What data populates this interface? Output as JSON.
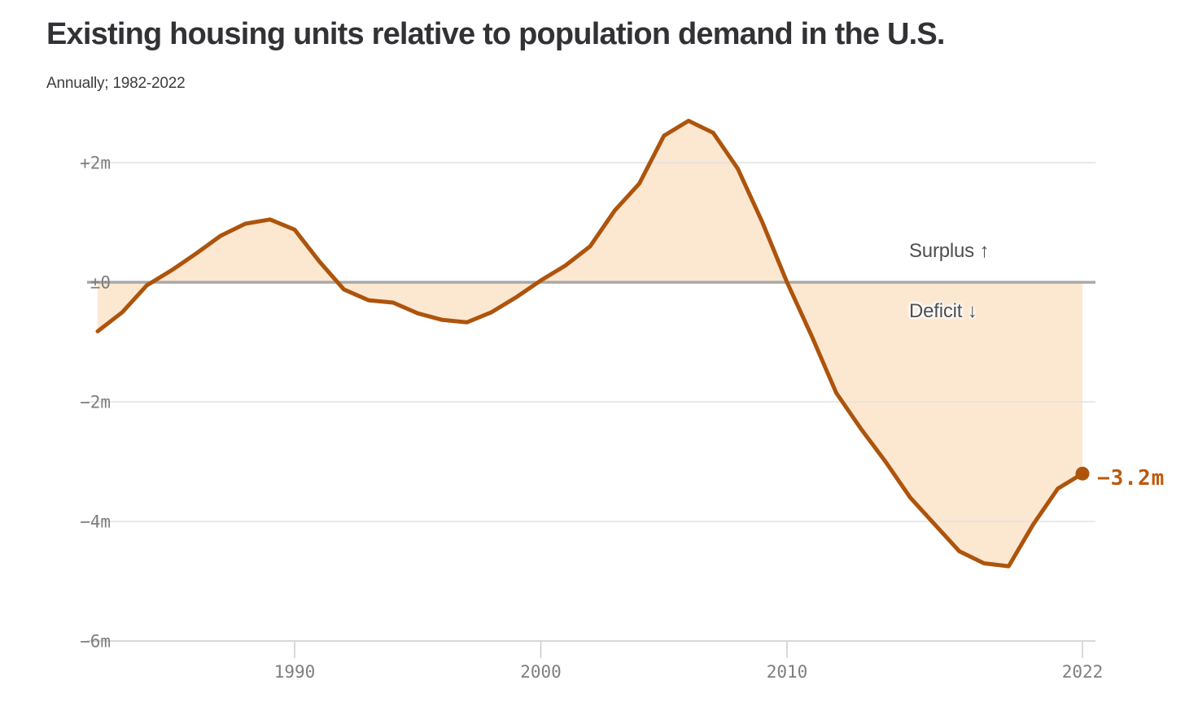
{
  "header": {
    "title": "Existing housing units relative to population demand in the U.S.",
    "subtitle": "Annually; 1982-2022"
  },
  "chart_data": {
    "type": "area",
    "title": "Existing housing units relative to population demand in the U.S.",
    "subtitle": "Annually; 1982-2022",
    "unit": "millions of housing units relative to demand",
    "x": [
      1982,
      1983,
      1984,
      1985,
      1986,
      1987,
      1988,
      1989,
      1990,
      1991,
      1992,
      1993,
      1994,
      1995,
      1996,
      1997,
      1998,
      1999,
      2000,
      2001,
      2002,
      2003,
      2004,
      2005,
      2006,
      2007,
      2008,
      2009,
      2010,
      2011,
      2012,
      2013,
      2014,
      2015,
      2016,
      2017,
      2018,
      2019,
      2020,
      2021,
      2022
    ],
    "values": [
      -0.82,
      -0.5,
      -0.05,
      0.2,
      0.48,
      0.78,
      0.98,
      1.05,
      0.88,
      0.35,
      -0.12,
      -0.3,
      -0.34,
      -0.52,
      -0.63,
      -0.67,
      -0.5,
      -0.25,
      0.03,
      0.28,
      0.6,
      1.2,
      1.65,
      2.45,
      2.7,
      2.5,
      1.9,
      1.0,
      0.0,
      -0.9,
      -1.85,
      -2.45,
      -3.0,
      -3.6,
      -4.05,
      -4.5,
      -4.7,
      -4.75,
      -4.05,
      -3.45,
      -3.2
    ],
    "xlim": [
      1982,
      2022
    ],
    "ylim": [
      -6,
      2.8
    ],
    "grid": "horizontal-only",
    "yticks": [
      {
        "value": 2,
        "label": "+2m"
      },
      {
        "value": 0,
        "label": "±0"
      },
      {
        "value": -2,
        "label": "−2m"
      },
      {
        "value": -4,
        "label": "−4m"
      },
      {
        "value": -6,
        "label": "−6m"
      }
    ],
    "xticks": [
      {
        "year": 1990,
        "label": "1990"
      },
      {
        "year": 2000,
        "label": "2000"
      },
      {
        "year": 2010,
        "label": "2010"
      },
      {
        "year": 2022,
        "label": "2022"
      }
    ],
    "annotations": {
      "surplus": "Surplus ↑",
      "deficit": "Deficit ↓",
      "end_label": "−3.2m",
      "end_value": -3.2,
      "end_year": 2022
    },
    "colors": {
      "line": "#ad540c",
      "fill": "#fce7d1",
      "zero_line": "#a9a9a9",
      "grid": "#e2e2e2",
      "axis_line": "#cccccc",
      "axis_text": "#7e7e7e",
      "title_text": "#323236",
      "annotation_text": "#4f4f4f",
      "end_label_text": "#bc5a0d"
    }
  }
}
